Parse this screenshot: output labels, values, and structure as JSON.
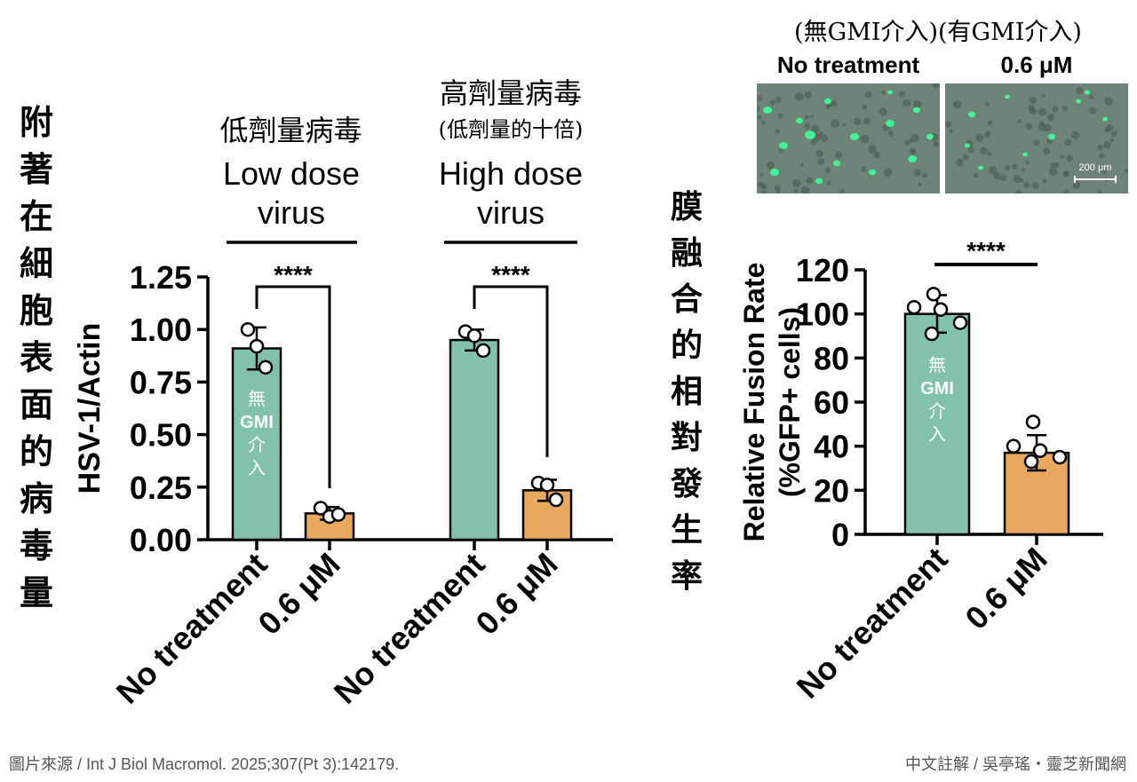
{
  "left_title_chars": [
    "附",
    "著",
    "在",
    "細",
    "胞",
    "表",
    "面",
    "的",
    "病",
    "毒",
    "量"
  ],
  "right_title_chars": [
    "膜",
    "融",
    "合",
    "的",
    "相",
    "對",
    "發",
    "生",
    "率"
  ],
  "groups": [
    {
      "zh": "低劑量病毒",
      "zh_sub": "",
      "en_line1": "Low dose",
      "en_line2": "virus"
    },
    {
      "zh": "高劑量病毒",
      "zh_sub": "(低劑量的十倍)",
      "en_line1": "High dose",
      "en_line2": "virus"
    }
  ],
  "micrograph": {
    "zh_label": "(無GMI介入)(有GMI介入)",
    "left_label": "No treatment",
    "right_label": "0.6 μM",
    "scale_bar": "200 μm"
  },
  "bar_annotation_chars": [
    "無",
    "GMI",
    "介",
    "入"
  ],
  "significance": "****",
  "footer_left": "圖片來源 / Int J Biol Macromol. 2025;307(Pt 3):142179.",
  "footer_right": "中文註解 / 吳亭瑤・靈芝新聞網",
  "colors": {
    "no_treatment": "#82c2ad",
    "treated": "#e8a85e"
  },
  "chart_data": [
    {
      "type": "bar",
      "ylabel": "HSV-1/Actin",
      "ylim": [
        0,
        1.25
      ],
      "yticks": [
        "0.00",
        "0.25",
        "0.50",
        "0.75",
        "1.00",
        "1.25"
      ],
      "categories": [
        "No treatment",
        "0.6 μM",
        "No treatment",
        "0.6 μM"
      ],
      "group_labels": [
        "Low dose virus",
        "High dose virus"
      ],
      "values": [
        0.91,
        0.125,
        0.95,
        0.235
      ],
      "errors": [
        0.1,
        0.03,
        0.05,
        0.05
      ],
      "points": [
        [
          1.0,
          0.92,
          0.82
        ],
        [
          0.15,
          0.11,
          0.12
        ],
        [
          0.99,
          0.97,
          0.9
        ],
        [
          0.27,
          0.26,
          0.19
        ]
      ]
    },
    {
      "type": "bar",
      "ylabel": "Relative Fusion Rate",
      "ylabel2": "(%GFP+ cells)",
      "ylim": [
        0,
        120
      ],
      "yticks": [
        "0",
        "20",
        "40",
        "60",
        "80",
        "100",
        "120"
      ],
      "categories": [
        "No treatment",
        "0.6 μM"
      ],
      "values": [
        100,
        37
      ],
      "errors": [
        8.5,
        8.0
      ],
      "points": [
        [
          109,
          103,
          102,
          96,
          91
        ],
        [
          51,
          40,
          38,
          35,
          33
        ]
      ]
    }
  ]
}
